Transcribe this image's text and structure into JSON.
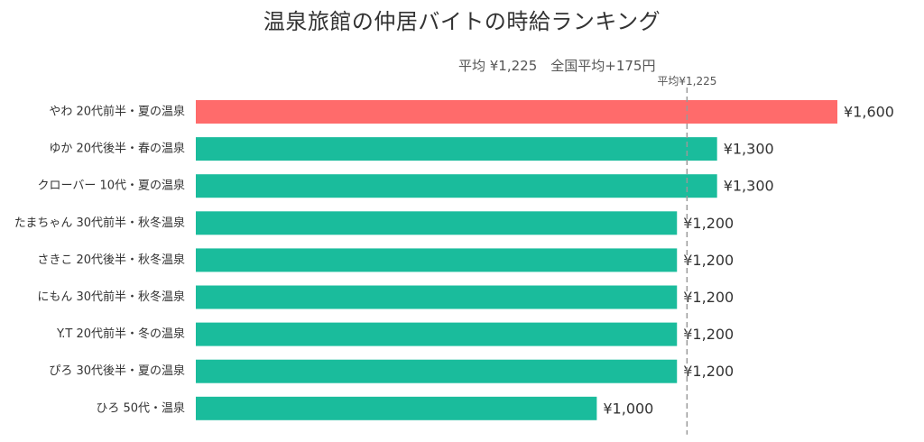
{
  "chart_data": {
    "type": "bar",
    "orientation": "horizontal",
    "title": "温泉旅館の仲居バイトの時給ランキング",
    "subtitle": "平均 ¥1,225　全国平均+175円",
    "categories": [
      "やわ  20代前半・夏の温泉",
      "ゆか  20代後半・春の温泉",
      "クローバー  10代・夏の温泉",
      "たまちゃん  30代前半・秋冬温泉",
      "さきこ  20代後半・秋冬温泉",
      "にもん  30代前半・秋冬温泉",
      "Y.T  20代前半・冬の温泉",
      "ぴろ  30代後半・夏の温泉",
      "ひろ  50代・温泉"
    ],
    "values": [
      1600,
      1300,
      1300,
      1200,
      1200,
      1200,
      1200,
      1200,
      1000
    ],
    "value_labels": [
      "¥1,600",
      "¥1,300",
      "¥1,300",
      "¥1,200",
      "¥1,200",
      "¥1,200",
      "¥1,200",
      "¥1,200",
      "¥1,000"
    ],
    "highlight_index": 0,
    "colors": {
      "highlight": "#ff6b6b",
      "default": "#1abc9c",
      "average_line": "#999999"
    },
    "average": {
      "value": 1225,
      "label": "平均¥1,225"
    },
    "xlim": [
      0,
      1600
    ],
    "grid": false
  }
}
